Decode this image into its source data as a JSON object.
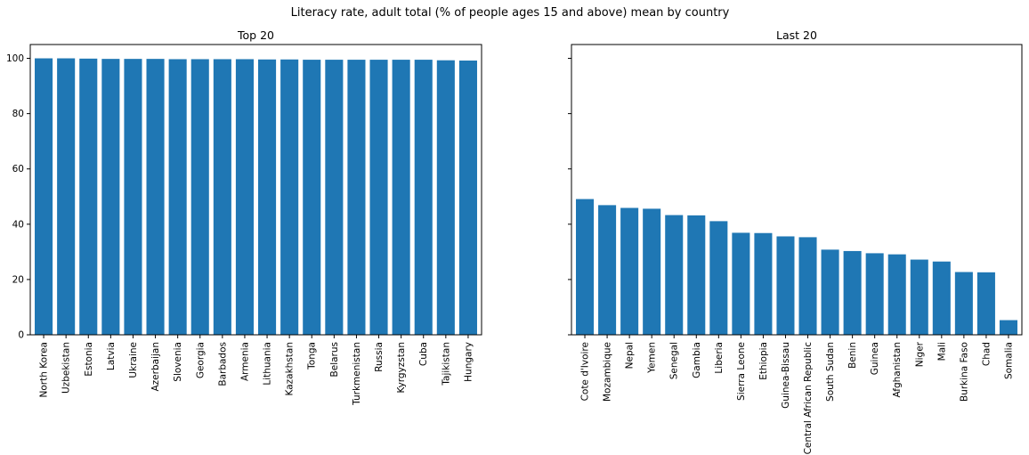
{
  "figure_title": "Literacy rate, adult total (% of people ages 15 and above) mean by country",
  "chart_data": [
    {
      "type": "bar",
      "title": "Top 20",
      "xlabel": "",
      "ylabel": "",
      "ylim": [
        0,
        105
      ],
      "yticks": [
        0,
        20,
        40,
        60,
        80,
        100
      ],
      "grid": false,
      "bar_color": "#1f77b4",
      "categories": [
        "North Korea",
        "Uzbekistan",
        "Estonia",
        "Latvia",
        "Ukraine",
        "Azerbaijan",
        "Slovenia",
        "Georgia",
        "Barbados",
        "Armenia",
        "Lithuania",
        "Kazakhstan",
        "Tonga",
        "Belarus",
        "Turkmenistan",
        "Russia",
        "Kyrgyzstan",
        "Cuba",
        "Tajikistan",
        "Hungary"
      ],
      "values": [
        100,
        100,
        99.9,
        99.8,
        99.8,
        99.8,
        99.7,
        99.7,
        99.7,
        99.7,
        99.6,
        99.6,
        99.5,
        99.5,
        99.5,
        99.5,
        99.5,
        99.5,
        99.3,
        99.2
      ]
    },
    {
      "type": "bar",
      "title": "Last 20",
      "xlabel": "",
      "ylabel": "",
      "ylim": [
        0,
        105
      ],
      "yticks": [
        0,
        20,
        40,
        60,
        80,
        100
      ],
      "grid": false,
      "bar_color": "#1f77b4",
      "categories": [
        "Cote d'Ivoire",
        "Mozambique",
        "Nepal",
        "Yemen",
        "Senegal",
        "Gambia",
        "Liberia",
        "Sierra Leone",
        "Ethiopia",
        "Guinea-Bissau",
        "Central African Republic",
        "South Sudan",
        "Benin",
        "Guinea",
        "Afghanistan",
        "Niger",
        "Mali",
        "Burkina Faso",
        "Chad",
        "Somalia"
      ],
      "values": [
        49.1,
        46.9,
        45.9,
        45.6,
        43.3,
        43.2,
        41.1,
        36.9,
        36.8,
        35.6,
        35.3,
        30.8,
        30.3,
        29.5,
        29.1,
        27.2,
        26.5,
        22.7,
        22.6,
        5.3
      ]
    }
  ]
}
